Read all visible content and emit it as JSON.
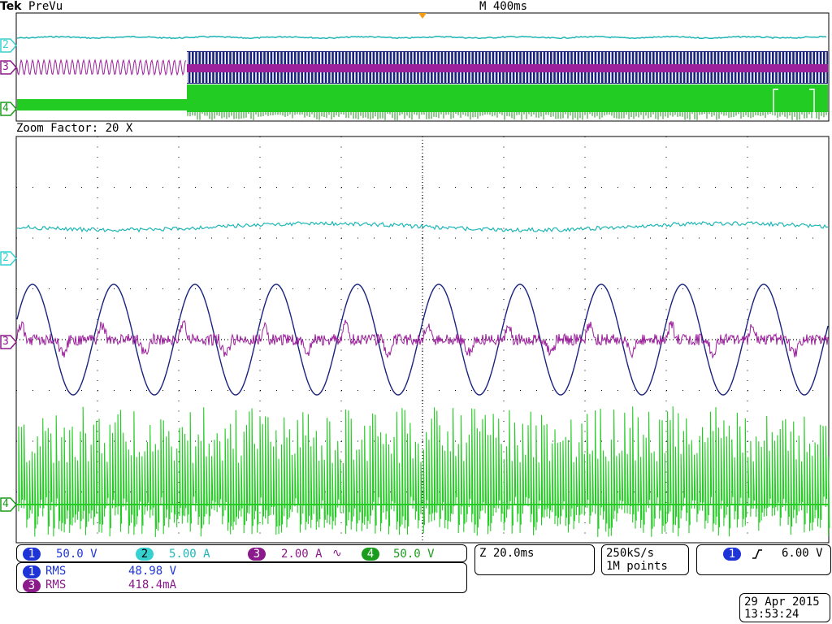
{
  "header": {
    "brand": "Tek",
    "mode": "PreVu",
    "timebase": "M 400ms"
  },
  "zoom": {
    "label": "Zoom Factor: 20 X"
  },
  "channel_markers": {
    "ch2": "2",
    "ch3": "3",
    "ch4": "4"
  },
  "colors": {
    "ch1": "#1a237e",
    "ch2": "#1fb5b5",
    "ch3": "#9c1f9c",
    "ch4": "#22cc22",
    "ch1_chip": "#1e34d6",
    "ch2_chip": "#35d0d0",
    "ch3_chip": "#8b1a8b",
    "ch4_chip": "#1c9c1c",
    "grid": "#000000",
    "trigger_marker": "#f39c12"
  },
  "channels": [
    {
      "num": "1",
      "scale": "50.0 V",
      "suffix": ""
    },
    {
      "num": "2",
      "scale": "5.00 A",
      "suffix": ""
    },
    {
      "num": "3",
      "scale": "2.00 A",
      "suffix": "∿"
    },
    {
      "num": "4",
      "scale": "50.0 V",
      "suffix": ""
    }
  ],
  "measurements": [
    {
      "channel": "1",
      "name": "RMS",
      "value": "48.98 V"
    },
    {
      "channel": "3",
      "name": "RMS",
      "value": "418.4mA"
    }
  ],
  "zoom_time": "Z 20.0ms",
  "acquisition": {
    "rate": "250kS/s",
    "record": "1M points"
  },
  "trigger": {
    "channel": "1",
    "slope_icon": "rising-edge",
    "level": "6.00 V"
  },
  "datetime": {
    "date": "29 Apr  2015",
    "time": "13:53:24"
  }
}
